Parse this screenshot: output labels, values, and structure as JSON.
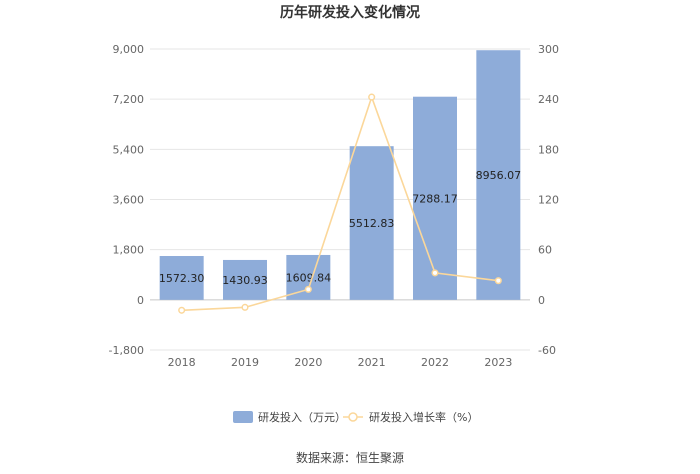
{
  "chart_data": {
    "type": "bar",
    "title": "历年研发投入变化情况",
    "categories": [
      "2018",
      "2019",
      "2020",
      "2021",
      "2022",
      "2023"
    ],
    "series": [
      {
        "name": "研发投入（万元）",
        "type": "bar",
        "axis": "left",
        "color": "#8eacd9",
        "values": [
          1572.3,
          1430.93,
          1609.84,
          5512.83,
          7288.17,
          8956.07
        ],
        "labels": [
          "1572.30",
          "1430.93",
          "1609.84",
          "5512.83",
          "7288.17",
          "8956.07"
        ]
      },
      {
        "name": "研发投入增长率（%）",
        "type": "line",
        "axis": "right",
        "color": "#fbd79a",
        "values": [
          -12.5,
          -9.0,
          12.5,
          242.5,
          32.2,
          22.9
        ]
      }
    ],
    "y_left": {
      "ylim": [
        -1800,
        9000
      ],
      "ticks": [
        9000,
        7200,
        5400,
        3600,
        1800,
        0,
        -1800
      ],
      "tick_labels": [
        "9,000",
        "7,200",
        "5,400",
        "3,600",
        "1,800",
        "0",
        "-1,800"
      ]
    },
    "y_right": {
      "ylim": [
        -60,
        300
      ],
      "ticks": [
        300,
        240,
        180,
        120,
        60,
        0,
        -60
      ],
      "tick_labels": [
        "300",
        "240",
        "180",
        "120",
        "60",
        "0",
        "-60"
      ]
    },
    "grid": true,
    "legend_position": "bottom"
  },
  "source": "数据来源：恒生聚源"
}
